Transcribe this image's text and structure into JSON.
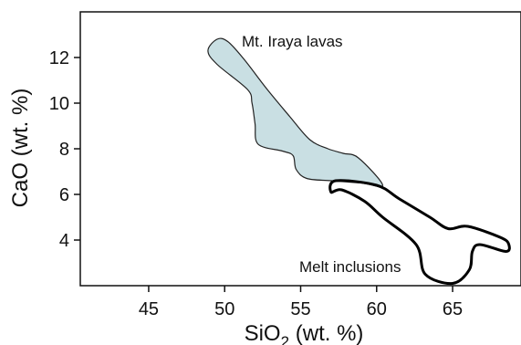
{
  "chart_data": {
    "type": "scatter",
    "xlabel_prefix": "SiO",
    "xlabel_sub": "2",
    "xlabel_suffix": " (wt. %)",
    "ylabel": "CaO (wt. %)",
    "xlim": [
      40.5,
      69.5
    ],
    "ylim": [
      2.0,
      14.0
    ],
    "x_ticks": [
      45,
      50,
      55,
      60,
      65
    ],
    "y_ticks": [
      4,
      6,
      8,
      10,
      12
    ],
    "grid": false,
    "annotations": [
      "Mt. Iraya lavas",
      "Melt inclusions"
    ],
    "fields": [
      {
        "name": "Mt. Iraya lavas",
        "fill": "#c9dfe3",
        "stroke": "#222222",
        "points": [
          [
            49.5,
            12.8
          ],
          [
            50.2,
            12.7
          ],
          [
            51.3,
            11.9
          ],
          [
            52.8,
            10.6
          ],
          [
            54.3,
            9.4
          ],
          [
            55.6,
            8.4
          ],
          [
            56.8,
            8.0
          ],
          [
            57.8,
            7.8
          ],
          [
            58.8,
            7.6
          ],
          [
            60.4,
            6.4
          ],
          [
            59.0,
            6.5
          ],
          [
            57.0,
            6.6
          ],
          [
            55.4,
            6.7
          ],
          [
            54.7,
            7.1
          ],
          [
            54.5,
            7.7
          ],
          [
            53.8,
            7.9
          ],
          [
            52.2,
            8.2
          ],
          [
            52.0,
            9.1
          ],
          [
            51.8,
            10.0
          ],
          [
            51.5,
            10.6
          ],
          [
            49.5,
            11.7
          ],
          [
            48.9,
            12.3
          ]
        ]
      },
      {
        "name": "Melt inclusions",
        "fill": "none",
        "stroke": "#000000",
        "points": [
          [
            57.0,
            6.1
          ],
          [
            57.3,
            6.6
          ],
          [
            60.0,
            6.4
          ],
          [
            61.5,
            5.8
          ],
          [
            63.5,
            5.0
          ],
          [
            64.7,
            4.5
          ],
          [
            66.0,
            4.6
          ],
          [
            68.2,
            4.1
          ],
          [
            68.7,
            3.8
          ],
          [
            68.5,
            3.5
          ],
          [
            66.8,
            3.8
          ],
          [
            66.3,
            3.5
          ],
          [
            66.1,
            2.7
          ],
          [
            65.0,
            2.1
          ],
          [
            63.2,
            2.5
          ],
          [
            62.6,
            3.8
          ],
          [
            60.4,
            5.0
          ],
          [
            59.2,
            5.7
          ],
          [
            57.7,
            6.2
          ]
        ]
      }
    ]
  }
}
